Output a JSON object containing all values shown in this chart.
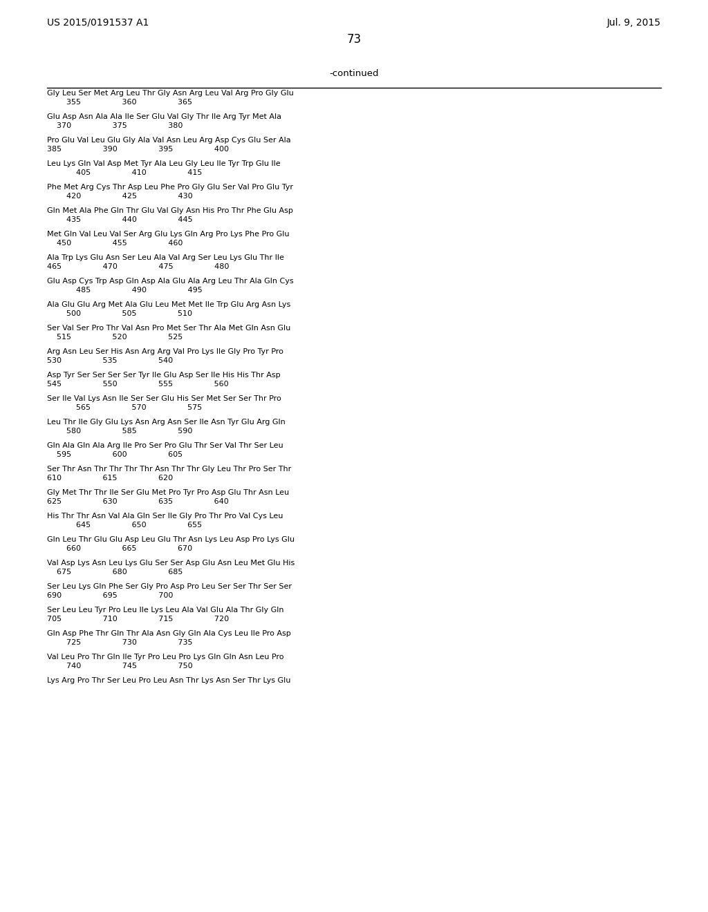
{
  "left_header": "US 2015/0191537 A1",
  "right_header": "Jul. 9, 2015",
  "page_number": "73",
  "continued_label": "-continued",
  "background_color": "#ffffff",
  "text_color": "#000000",
  "sequence_lines": [
    "Gly Leu Ser Met Arg Leu Thr Gly Asn Arg Leu Val Arg Pro Gly Glu",
    "        355                 360                 365",
    "",
    "Glu Asp Asn Ala Ala Ile Ser Glu Val Gly Thr Ile Arg Tyr Met Ala",
    "    370                 375                 380",
    "",
    "Pro Glu Val Leu Glu Gly Ala Val Asn Leu Arg Asp Cys Glu Ser Ala",
    "385                 390                 395                 400",
    "",
    "Leu Lys Gln Val Asp Met Tyr Ala Leu Gly Leu Ile Tyr Trp Glu Ile",
    "            405                 410                 415",
    "",
    "Phe Met Arg Cys Thr Asp Leu Phe Pro Gly Glu Ser Val Pro Glu Tyr",
    "        420                 425                 430",
    "",
    "Gln Met Ala Phe Gln Thr Glu Val Gly Asn His Pro Thr Phe Glu Asp",
    "        435                 440                 445",
    "",
    "Met Gln Val Leu Val Ser Arg Glu Lys Gln Arg Pro Lys Phe Pro Glu",
    "    450                 455                 460",
    "",
    "Ala Trp Lys Glu Asn Ser Leu Ala Val Arg Ser Leu Lys Glu Thr Ile",
    "465                 470                 475                 480",
    "",
    "Glu Asp Cys Trp Asp Gln Asp Ala Glu Ala Arg Leu Thr Ala Gln Cys",
    "            485                 490                 495",
    "",
    "Ala Glu Glu Arg Met Ala Glu Leu Met Met Ile Trp Glu Arg Asn Lys",
    "        500                 505                 510",
    "",
    "Ser Val Ser Pro Thr Val Asn Pro Met Ser Thr Ala Met Gln Asn Glu",
    "    515                 520                 525",
    "",
    "Arg Asn Leu Ser His Asn Arg Arg Val Pro Lys Ile Gly Pro Tyr Pro",
    "530                 535                 540",
    "",
    "Asp Tyr Ser Ser Ser Ser Tyr Ile Glu Asp Ser Ile His His Thr Asp",
    "545                 550                 555                 560",
    "",
    "Ser Ile Val Lys Asn Ile Ser Ser Glu His Ser Met Ser Ser Thr Pro",
    "            565                 570                 575",
    "",
    "Leu Thr Ile Gly Glu Lys Asn Arg Asn Ser Ile Asn Tyr Glu Arg Gln",
    "        580                 585                 590",
    "",
    "Gln Ala Gln Ala Arg Ile Pro Ser Pro Glu Thr Ser Val Thr Ser Leu",
    "    595                 600                 605",
    "",
    "Ser Thr Asn Thr Thr Thr Thr Asn Thr Thr Gly Leu Thr Pro Ser Thr",
    "610                 615                 620",
    "",
    "Gly Met Thr Thr Ile Ser Glu Met Pro Tyr Pro Asp Glu Thr Asn Leu",
    "625                 630                 635                 640",
    "",
    "His Thr Thr Asn Val Ala Gln Ser Ile Gly Pro Thr Pro Val Cys Leu",
    "            645                 650                 655",
    "",
    "Gln Leu Thr Glu Glu Asp Leu Glu Thr Asn Lys Leu Asp Pro Lys Glu",
    "        660                 665                 670",
    "",
    "Val Asp Lys Asn Leu Lys Glu Ser Ser Asp Glu Asn Leu Met Glu His",
    "    675                 680                 685",
    "",
    "Ser Leu Lys Gln Phe Ser Gly Pro Asp Pro Leu Ser Ser Thr Ser Ser",
    "690                 695                 700",
    "",
    "Ser Leu Leu Tyr Pro Leu Ile Lys Leu Ala Val Glu Ala Thr Gly Gln",
    "705                 710                 715                 720",
    "",
    "Gln Asp Phe Thr Gln Thr Ala Asn Gly Gln Ala Cys Leu Ile Pro Asp",
    "        725                 730                 735",
    "",
    "Val Leu Pro Thr Gln Ile Tyr Pro Leu Pro Lys Gln Gln Asn Leu Pro",
    "        740                 745                 750",
    "",
    "Lys Arg Pro Thr Ser Leu Pro Leu Asn Thr Lys Asn Ser Thr Lys Glu"
  ]
}
